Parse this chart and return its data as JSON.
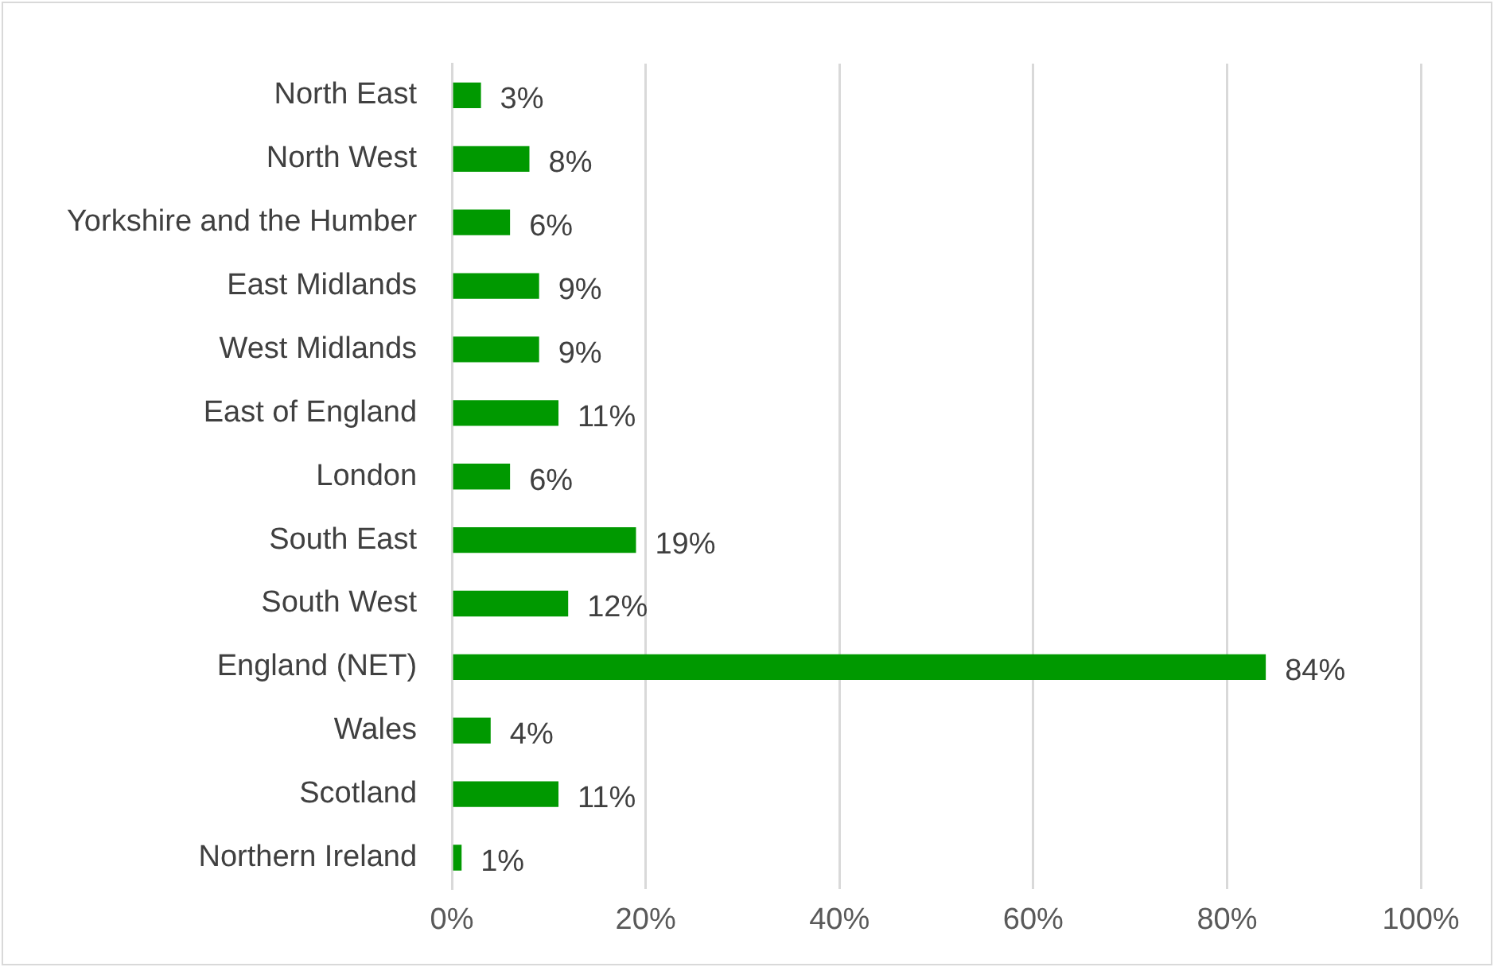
{
  "chart_data": {
    "type": "bar",
    "orientation": "horizontal",
    "categories": [
      "North East",
      "North West",
      "Yorkshire and the Humber",
      "East Midlands",
      "West Midlands",
      "East of England",
      "London",
      "South East",
      "South West",
      "England (NET)",
      "Wales",
      "Scotland",
      "Northern Ireland"
    ],
    "values": [
      3,
      8,
      6,
      9,
      9,
      11,
      6,
      19,
      12,
      84,
      4,
      11,
      1
    ],
    "value_labels": [
      "3%",
      "8%",
      "6%",
      "9%",
      "9%",
      "11%",
      "6%",
      "19%",
      "12%",
      "84%",
      "4%",
      "11%",
      "1%"
    ],
    "color": "#009900",
    "xlim": [
      0,
      100
    ],
    "xticks": [
      {
        "value": 0,
        "label": "0%"
      },
      {
        "value": 20,
        "label": "20%"
      },
      {
        "value": 40,
        "label": "40%"
      },
      {
        "value": 60,
        "label": "60%"
      },
      {
        "value": 80,
        "label": "80%"
      },
      {
        "value": 100,
        "label": "100%"
      }
    ],
    "grid": "x",
    "legend": false
  }
}
